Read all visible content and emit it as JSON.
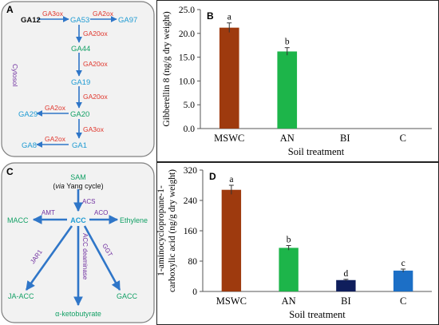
{
  "panel_a": {
    "label": "A",
    "compartment": "Cytosol",
    "colors": {
      "node": "#1f9bd3",
      "enzyme": "#e0362c",
      "start": "#111111",
      "purple": "#7030a0",
      "arrow": "#2f76c8"
    },
    "nodes": {
      "ga12": "GA12",
      "ga53": "GA53",
      "ga97": "GA97",
      "ga44": "GA44",
      "ga19": "GA19",
      "ga20": "GA20",
      "ga29": "GA29",
      "ga8": "GA8",
      "ga1": "GA1"
    },
    "enzymes": {
      "ga12_ga53": "GA3ox",
      "ga53_ga97": "GA2ox",
      "ga53_ga44": "GA20ox",
      "ga44_ga19": "GA20ox",
      "ga19_ga20": "GA20ox",
      "ga20_ga29": "GA2ox",
      "ga20_ga1": "GA3ox",
      "ga1_ga8": "GA2ox"
    }
  },
  "panel_c": {
    "label": "C",
    "colors": {
      "node": "#12a065",
      "enzyme": "#7030a0",
      "center": "#1f9bd3",
      "arrow": "#2f76c8"
    },
    "nodes": {
      "sam": "SAM",
      "sam_note_pre": "(",
      "sam_note_via": "via",
      "sam_note_post": " Yang cycle)",
      "acc": "ACC",
      "macc": "MACC",
      "ethylene": "Ethylene",
      "ja_acc": "JA-ACC",
      "gacc": "GACC",
      "ketobutyrate": "α-ketobutyrate"
    },
    "enzymes": {
      "acs": "ACS",
      "amt": "AMT",
      "aco": "ACO",
      "jar1": "JAR1",
      "acc_deaminase": "ACC deaminase",
      "ggt": "GGT"
    }
  },
  "chart_data": [
    {
      "panel": "B",
      "type": "bar",
      "categories": [
        "MSWC",
        "AN",
        "BI",
        "C"
      ],
      "values": [
        21.2,
        16.2,
        0,
        0
      ],
      "errors": [
        1.0,
        0.8,
        0,
        0
      ],
      "letters": [
        "a",
        "b",
        "",
        ""
      ],
      "colors": [
        "#9e3a0e",
        "#1db54a",
        "#0f1e5c",
        "#1c6fc6"
      ],
      "xlabel": "Soil treatment",
      "ylabel": "Gibberellin 8 (ng/g dry weight)",
      "ylim": [
        0,
        25
      ],
      "yticks": [
        "0.0",
        "5.0",
        "10.0",
        "15.0",
        "20.0",
        "25.0"
      ],
      "grid": false
    },
    {
      "panel": "D",
      "type": "bar",
      "categories": [
        "MSWC",
        "AN",
        "BI",
        "C"
      ],
      "values": [
        268,
        115,
        30,
        55
      ],
      "errors": [
        12,
        6,
        2,
        4
      ],
      "letters": [
        "a",
        "b",
        "d",
        "c"
      ],
      "colors": [
        "#9e3a0e",
        "#1db54a",
        "#0f1e5c",
        "#1c6fc6"
      ],
      "xlabel": "Soil treatment",
      "ylabel_line1": "1-aminocyclopropane-1-",
      "ylabel_line2": "carboxylic acid (ng/g dry weight)",
      "ylim": [
        0,
        320
      ],
      "yticks": [
        "0",
        "80",
        "160",
        "240",
        "320"
      ],
      "grid": false
    }
  ]
}
